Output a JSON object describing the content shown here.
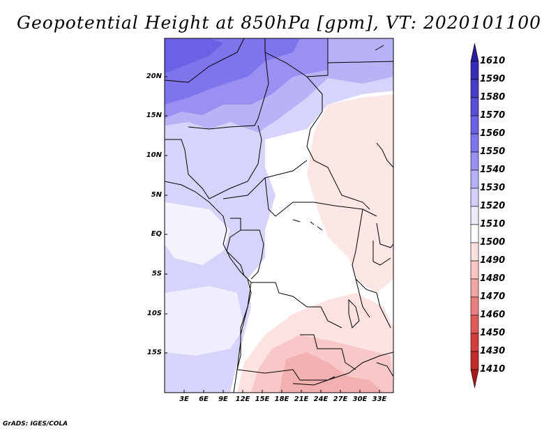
{
  "title": "Geopotential Height at 850hPa [gpm], VT: 2020101100",
  "credit": "GrADS: IGES/COLA",
  "lat_labels": [
    "20N",
    "15N",
    "10N",
    "5N",
    "EQ",
    "5S",
    "10S",
    "15S"
  ],
  "lon_labels": [
    "3E",
    "6E",
    "9E",
    "12E",
    "15E",
    "18E",
    "21E",
    "24E",
    "27E",
    "30E",
    "33E"
  ],
  "legend": {
    "levels": [
      "1610",
      "1590",
      "1580",
      "1570",
      "1560",
      "1550",
      "1540",
      "1530",
      "1520",
      "1510",
      "1500",
      "1490",
      "1480",
      "1470",
      "1460",
      "1450",
      "1430",
      "1410"
    ],
    "colors": [
      "#2a1a9c",
      "#3a2ab8",
      "#4a3cc8",
      "#5a4ed8",
      "#6c60e4",
      "#8074ec",
      "#9a90f2",
      "#b6b0f6",
      "#d2d0fa",
      "#ececfd",
      "#ffffff",
      "#fce0e0",
      "#f8c4c4",
      "#f2a4a4",
      "#ea7f7f",
      "#e05a5a",
      "#d43c3c",
      "#c42828",
      "#a81818"
    ]
  }
}
